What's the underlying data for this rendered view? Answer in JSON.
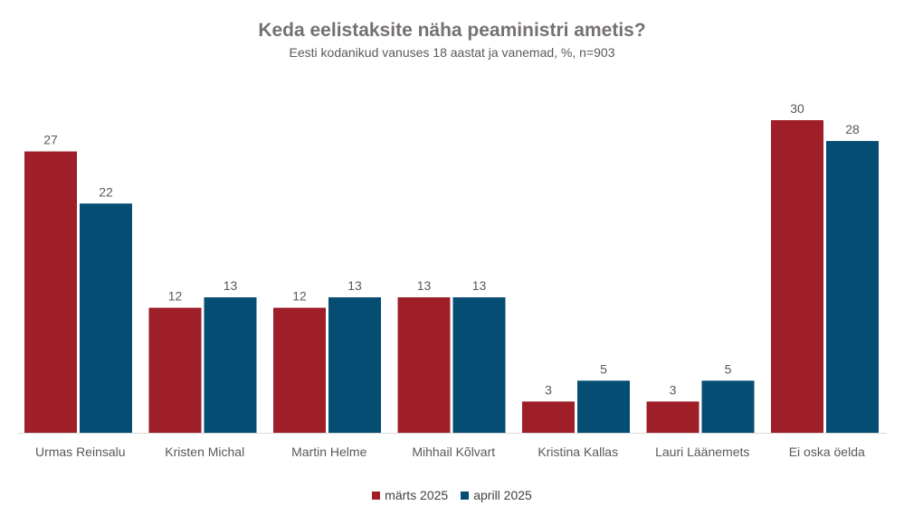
{
  "chart_data": {
    "type": "bar",
    "title": "Keda eelistaksite näha peaministri ametis?",
    "subtitle": "Eesti kodanikud vanuses 18 aastat ja vanemad, %, n=903",
    "categories": [
      "Urmas Reinsalu",
      "Kristen Michal",
      "Martin Helme",
      "Mihhail Kõlvart",
      "Kristina Kallas",
      "Lauri Läänemets",
      "Ei oska öelda"
    ],
    "series": [
      {
        "name": "märts 2025",
        "color": "#9E1F28",
        "values": [
          27,
          12,
          12,
          13,
          3,
          3,
          30
        ]
      },
      {
        "name": "aprill 2025",
        "color": "#064D74",
        "values": [
          22,
          13,
          13,
          13,
          5,
          5,
          28
        ]
      }
    ],
    "ylim": [
      0,
      30
    ],
    "legend_position": "bottom",
    "grid": false
  }
}
